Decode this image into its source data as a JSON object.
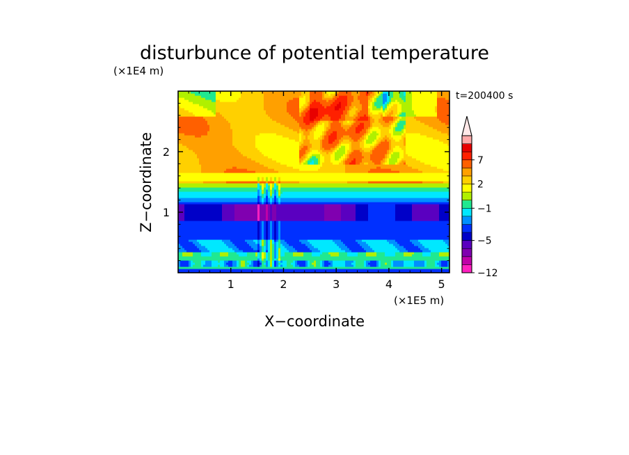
{
  "chart_data": {
    "type": "heatmap",
    "title": "disturbunce of potential temperature",
    "xlabel": "X−coordinate",
    "ylabel": "Z−coordinate",
    "x_unit": "(×1E5 m)",
    "y_unit": "(×1E4 m)",
    "time_label": "t=200400 s",
    "xlim": [
      0,
      5.15
    ],
    "ylim": [
      0,
      3.0
    ],
    "xticks": [
      1,
      2,
      3,
      4,
      5
    ],
    "xtick_labels": [
      "1",
      "2",
      "3",
      "4",
      "5"
    ],
    "yticks": [
      1,
      2
    ],
    "ytick_labels": [
      "1",
      "2"
    ],
    "colorbar": {
      "levels_low_to_high": [
        -12,
        -11,
        -9,
        -7,
        -5,
        -4,
        -3,
        -2,
        -1,
        0,
        1,
        2,
        3,
        5,
        7,
        9,
        11
      ],
      "colors_low_to_high": [
        "#ff20c0",
        "#c000a8",
        "#8000b0",
        "#5a00c0",
        "#0000c8",
        "#0030ff",
        "#0090ff",
        "#00e8ff",
        "#20e890",
        "#b0f000",
        "#ffff00",
        "#ffd000",
        "#ffa000",
        "#ff6000",
        "#ff2000",
        "#e80000",
        "#ffa8a8",
        "#ffd0d0"
      ],
      "tick_values": [
        -12,
        -5,
        -1,
        2,
        7
      ],
      "tick_labels": [
        "−12",
        "−5",
        "−1",
        "2",
        "7"
      ],
      "top_arrow_color": "#ffe8e8"
    },
    "field_regions_description_levels": {
      "z_0_to_0.4": "mostly -2 to -1 with -4 streaks near surface",
      "z_0.4_to_1.3": "-5 to -4 with -9 band near z=1",
      "z_1.3_to_1.6": "-2 to 0 transition",
      "z_1.6_to_3.0": "1 to 5 with wave patterns, local -2 to 7 extrema near x=2.5-4"
    }
  }
}
